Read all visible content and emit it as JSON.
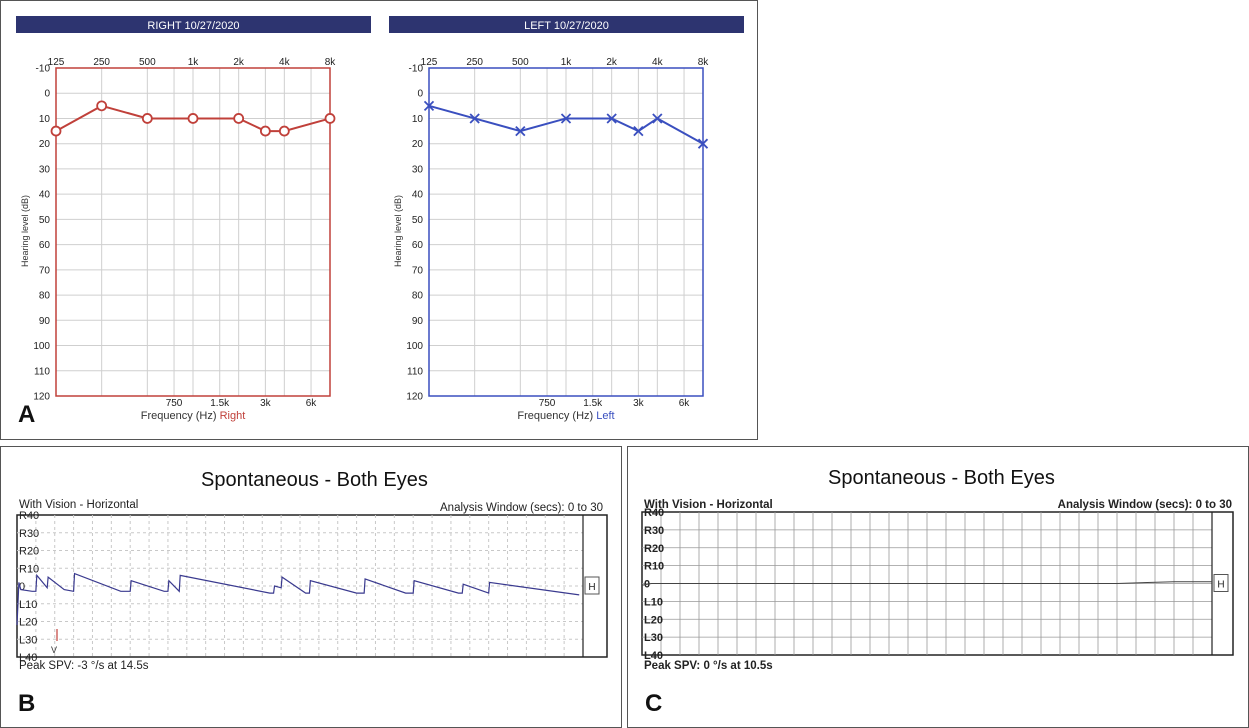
{
  "panels": {
    "a_letter": "A",
    "b_letter": "B",
    "c_letter": "C"
  },
  "audiogram_common": {
    "ylabel": "Hearing level (dB)",
    "xlabel": "Frequency (Hz)",
    "top_ticks": [
      "125",
      "250",
      "500",
      "1k",
      "2k",
      "4k",
      "8k"
    ],
    "bottom_ticks": [
      "750",
      "1.5k",
      "3k",
      "6k"
    ],
    "y_ticks": [
      "-10",
      "0",
      "10",
      "20",
      "30",
      "40",
      "50",
      "60",
      "70",
      "80",
      "90",
      "100",
      "110",
      "120"
    ]
  },
  "nystagmus_common": {
    "title": "Spontaneous - Both Eyes",
    "left_header": "With Vision - Horizontal",
    "right_header": "Analysis Window (secs): 0 to 30",
    "y_ticks": [
      "R40",
      "R30",
      "R20",
      "R10",
      "0",
      "L10",
      "L20",
      "L30",
      "L40"
    ],
    "channel_label": "H"
  },
  "nystagmus_b": {
    "peak_text": "Peak SPV: -3 °/s at 14.5s",
    "marker_label": "V"
  },
  "nystagmus_c": {
    "peak_text": "Peak SPV:  0 °/s at 10.5s"
  },
  "chart_data": [
    {
      "type": "line",
      "title": "RIGHT  10/27/2020",
      "xlabel": "Frequency (Hz)",
      "xlabel_suffix": "Right",
      "ylabel": "Hearing level (dB)",
      "x_scale": "log",
      "ylim": [
        -10,
        120
      ],
      "y_inverted": true,
      "grid": true,
      "color": "#c0403a",
      "marker": "circle",
      "x": [
        125,
        250,
        500,
        1000,
        2000,
        3000,
        4000,
        8000
      ],
      "values": [
        15,
        5,
        10,
        10,
        10,
        15,
        15,
        10
      ]
    },
    {
      "type": "line",
      "title": "LEFT  10/27/2020",
      "xlabel": "Frequency (Hz)",
      "xlabel_suffix": "Left",
      "ylabel": "Hearing level (dB)",
      "x_scale": "log",
      "ylim": [
        -10,
        120
      ],
      "y_inverted": true,
      "grid": true,
      "color": "#3a4fbf",
      "marker": "x",
      "x": [
        125,
        250,
        500,
        1000,
        2000,
        3000,
        4000,
        8000
      ],
      "values": [
        5,
        10,
        15,
        10,
        10,
        15,
        10,
        20
      ]
    },
    {
      "type": "line",
      "title": "Spontaneous - Both Eyes",
      "subtitle": "With Vision - Horizontal",
      "xlim": [
        0,
        30
      ],
      "ylim": [
        -40,
        40
      ],
      "color": "#3a3a8f",
      "x": [
        0,
        0.1,
        0.2,
        0.8,
        1.0,
        1.05,
        1.6,
        1.65,
        2.5,
        3.0,
        3.05,
        5.5,
        6.0,
        6.05,
        7.8,
        8.0,
        8.05,
        8.6,
        8.65,
        13.4,
        13.6,
        13.65,
        14.0,
        14.05,
        15.3,
        15.5,
        15.55,
        18.0,
        18.4,
        18.45,
        20.6,
        21.0,
        21.05,
        23.4,
        23.6,
        23.65,
        25.0,
        25.05,
        29.8
      ],
      "values": [
        -22,
        2,
        -2,
        -3,
        -3,
        6,
        -1,
        5,
        -2,
        -3,
        7,
        -3,
        -3,
        3,
        -3,
        -3,
        3,
        -3,
        6,
        -4,
        -4,
        0,
        -1,
        5,
        -4,
        -4,
        3,
        -4,
        -4,
        4,
        -4,
        -4,
        3,
        -4,
        -4,
        1,
        -4,
        2,
        -5
      ]
    },
    {
      "type": "line",
      "title": "Spontaneous - Both Eyes",
      "subtitle": "With Vision - Horizontal",
      "xlim": [
        0,
        30
      ],
      "ylim": [
        -40,
        40
      ],
      "color": "#444444",
      "x": [
        0,
        0.5,
        5,
        10,
        10.5,
        15,
        20,
        25,
        28,
        30
      ],
      "values": [
        -1,
        0,
        0,
        0,
        0,
        0,
        0,
        0,
        1,
        1
      ]
    }
  ]
}
